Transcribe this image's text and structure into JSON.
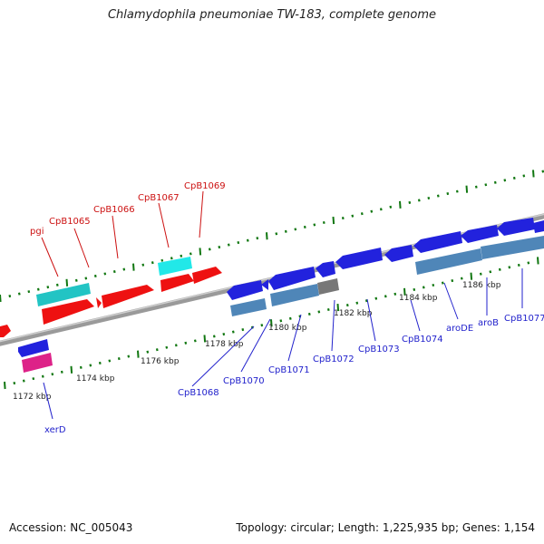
{
  "title": "Chlamydophila pneumoniae TW-183, complete genome",
  "footer": {
    "accession": "Accession: NC_005043",
    "summary": "Topology: circular; Length: 1,225,935 bp; Genes: 1,154"
  },
  "colors": {
    "forward_gene": "#ee1111",
    "reverse_gene": "#2222dd",
    "rna_gene": "#22cccc",
    "steelblue_feature": "#4f86b8",
    "gray_feature": "#777777",
    "pink_feature": "#dd2288",
    "tick": "#117711",
    "backbone": "#888888"
  },
  "scale": {
    "ticks": [
      {
        "label": "1172 kbp"
      },
      {
        "label": "1174 kbp"
      },
      {
        "label": "1176 kbp"
      },
      {
        "label": "1178 kbp"
      },
      {
        "label": "1180 kbp"
      },
      {
        "label": "1182 kbp"
      },
      {
        "label": "1184 kbp"
      },
      {
        "label": "1186 kbp"
      }
    ]
  },
  "genes_forward": [
    {
      "label": "pgi"
    },
    {
      "label": "CpB1065"
    },
    {
      "label": "CpB1066"
    },
    {
      "label": "CpB1067"
    },
    {
      "label": "CpB1069"
    }
  ],
  "genes_reverse": [
    {
      "label": "xerD"
    },
    {
      "label": "CpB1068"
    },
    {
      "label": "CpB1070"
    },
    {
      "label": "CpB1071"
    },
    {
      "label": "CpB1072"
    },
    {
      "label": "CpB1073"
    },
    {
      "label": "CpB1074"
    },
    {
      "label": "aroDE"
    },
    {
      "label": "aroB"
    },
    {
      "label": "CpB1077"
    }
  ]
}
